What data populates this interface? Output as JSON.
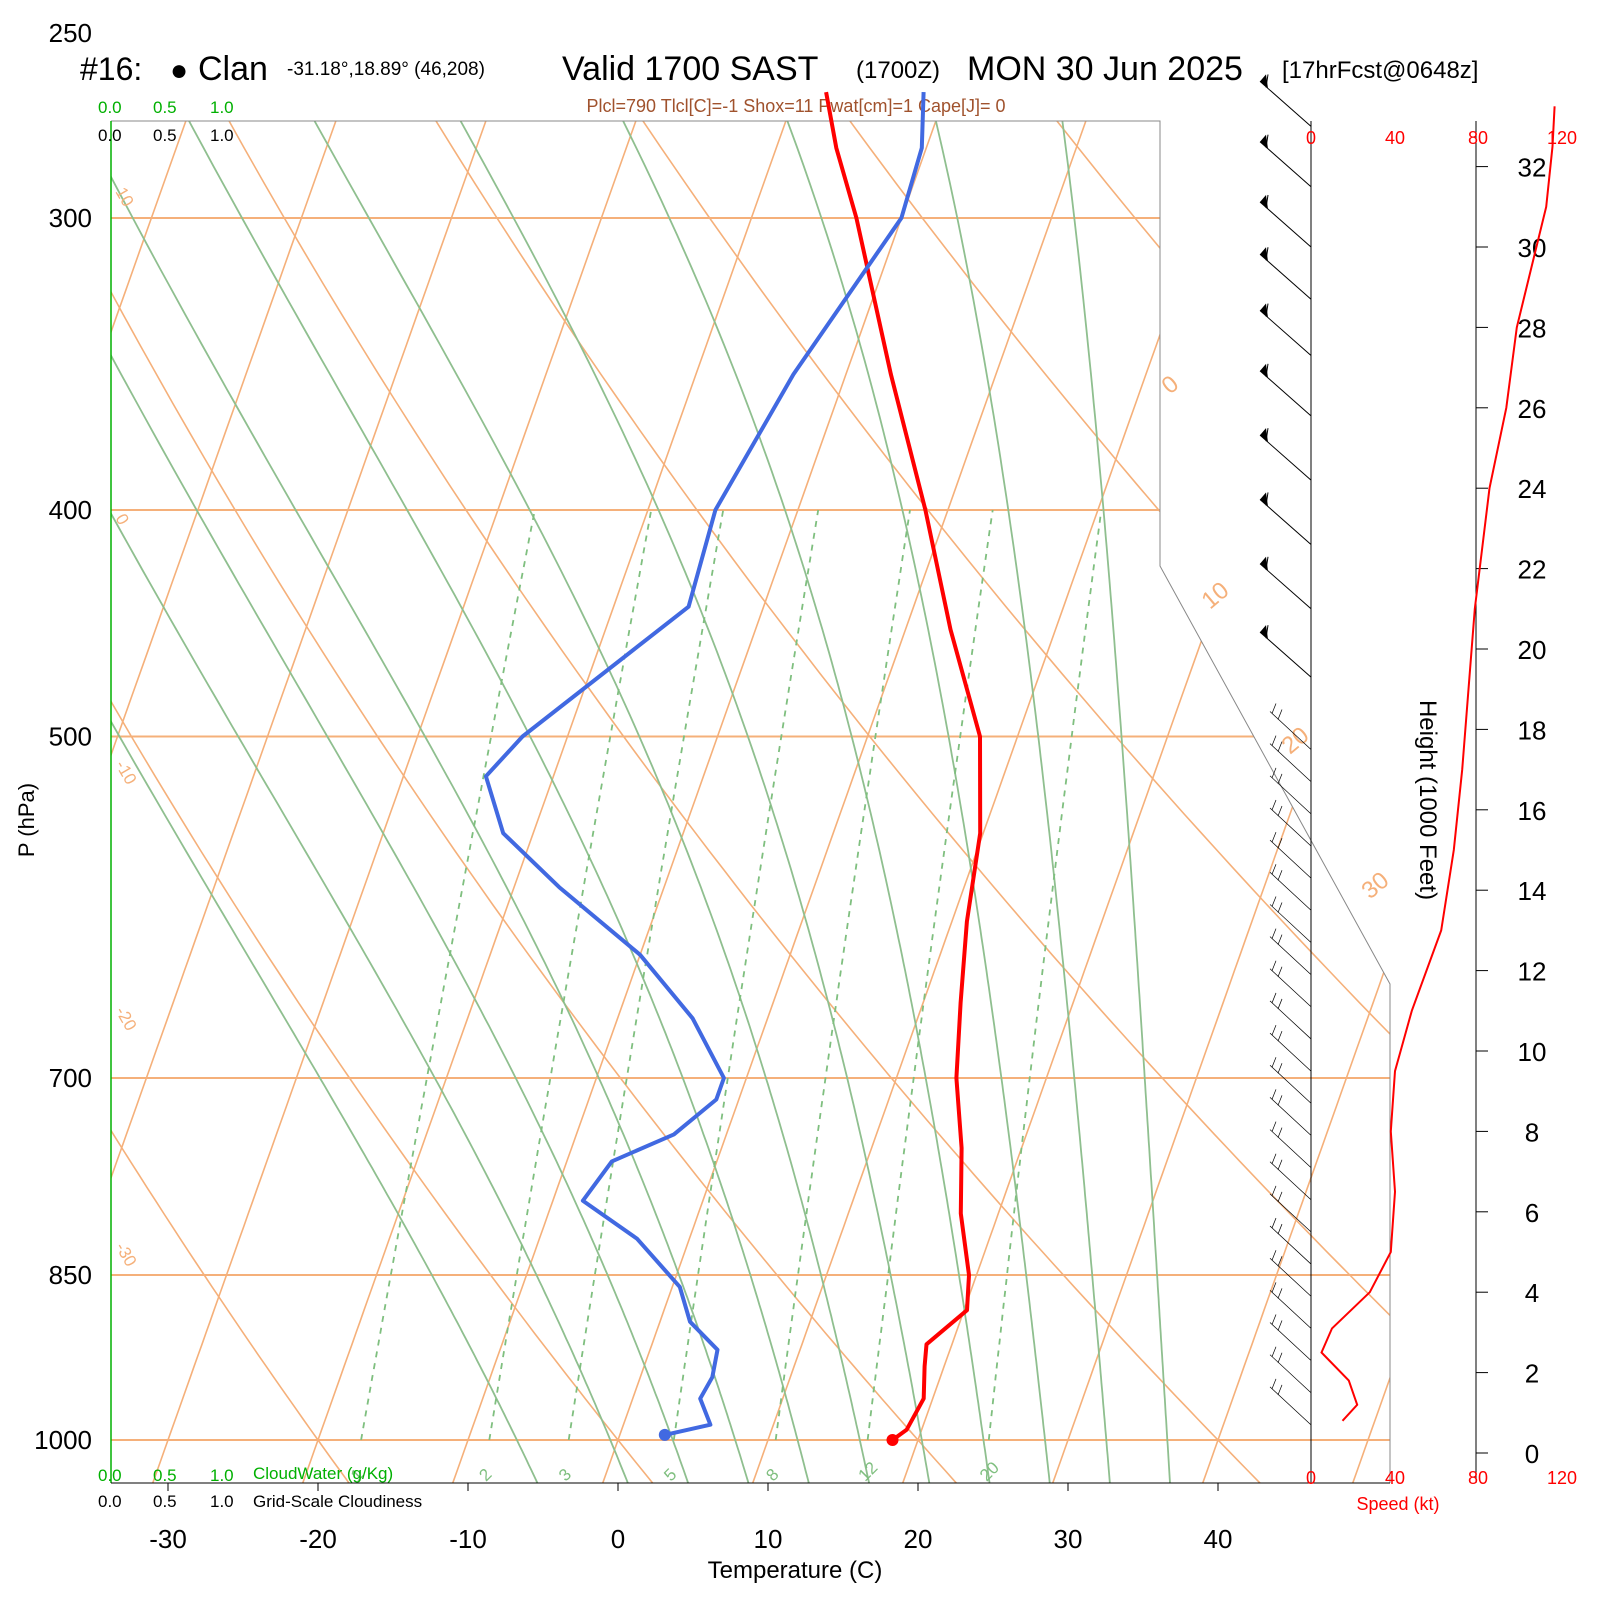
{
  "header": {
    "station_prefix": "#16:",
    "station_marker": "●",
    "station_name": "Clan",
    "coords": "-31.18°,18.89° (46,208)",
    "valid_label": "Valid 1700 SAST",
    "zulu": "(1700Z)",
    "date": "MON 30 Jun 2025",
    "forecast": "[17hrFcst@0648z]",
    "indices": "Plcl=790 Tlcl[C]=-1 Shox=11 Pwat[cm]=1 Cape[J]= 0"
  },
  "colors": {
    "temperature": "#ff0000",
    "dewpoint": "#4169e1",
    "isotherm": "#f5b07a",
    "dry_adiabat": "#f5b07a",
    "moist_adiabat": "#8fbf8f",
    "mixing_ratio": "#7fbf7f",
    "isotherm_label": "#f5b07a",
    "cloud_scale": "#00b000",
    "wind_speed": "#ff0000"
  },
  "chart_data": {
    "type": "skew-t",
    "xlabel": "Temperature (C)",
    "ylabel": "P (hPa)",
    "right_label": "Height (1000 Feet)",
    "pressure_ticks": [
      250,
      300,
      400,
      500,
      700,
      850,
      1000
    ],
    "temperature_ticks": [
      -30,
      -20,
      -10,
      0,
      10,
      20,
      30,
      40
    ],
    "height_ticks": [
      0,
      2,
      4,
      6,
      8,
      10,
      12,
      14,
      16,
      18,
      20,
      22,
      24,
      26,
      28,
      30,
      32
    ],
    "isotherm_labels": [
      "10",
      "0",
      "-10",
      "-20",
      "-30"
    ],
    "isotherm_right_labels": [
      "0",
      "10",
      "20",
      "30"
    ],
    "mixing_ratio_labels": [
      "1",
      "2",
      "3",
      "5",
      "8",
      "12",
      "20"
    ],
    "temperature_profile": [
      {
        "p": 1000,
        "t": 18.3
      },
      {
        "p": 990,
        "t": 19.0
      },
      {
        "p": 960,
        "t": 19.4
      },
      {
        "p": 930,
        "t": 18.7
      },
      {
        "p": 910,
        "t": 18.3
      },
      {
        "p": 880,
        "t": 20.2
      },
      {
        "p": 850,
        "t": 19.5
      },
      {
        "p": 800,
        "t": 17.5
      },
      {
        "p": 750,
        "t": 16.0
      },
      {
        "p": 700,
        "t": 14.0
      },
      {
        "p": 650,
        "t": 12.5
      },
      {
        "p": 600,
        "t": 11.0
      },
      {
        "p": 550,
        "t": 9.8
      },
      {
        "p": 500,
        "t": 7.5
      },
      {
        "p": 450,
        "t": 3.0
      },
      {
        "p": 400,
        "t": -1.5
      },
      {
        "p": 350,
        "t": -7.0
      },
      {
        "p": 300,
        "t": -13.0
      },
      {
        "p": 280,
        "t": -16.0
      },
      {
        "p": 265,
        "t": -18.0
      }
    ],
    "dewpoint_profile": [
      {
        "p": 995,
        "t": 3.0
      },
      {
        "p": 985,
        "t": 5.8
      },
      {
        "p": 960,
        "t": 4.5
      },
      {
        "p": 940,
        "t": 4.8
      },
      {
        "p": 915,
        "t": 4.5
      },
      {
        "p": 890,
        "t": 2.0
      },
      {
        "p": 860,
        "t": 0.5
      },
      {
        "p": 820,
        "t": -3.5
      },
      {
        "p": 790,
        "t": -8.0
      },
      {
        "p": 760,
        "t": -7.0
      },
      {
        "p": 740,
        "t": -3.5
      },
      {
        "p": 715,
        "t": -1.5
      },
      {
        "p": 700,
        "t": -1.5
      },
      {
        "p": 660,
        "t": -5.0
      },
      {
        "p": 620,
        "t": -10.0
      },
      {
        "p": 580,
        "t": -17.0
      },
      {
        "p": 550,
        "t": -22.0
      },
      {
        "p": 520,
        "t": -24.5
      },
      {
        "p": 500,
        "t": -23.0
      },
      {
        "p": 440,
        "t": -15.0
      },
      {
        "p": 400,
        "t": -15.5
      },
      {
        "p": 350,
        "t": -13.5
      },
      {
        "p": 300,
        "t": -10.0
      },
      {
        "p": 280,
        "t": -10.3
      },
      {
        "p": 265,
        "t": -11.5
      }
    ],
    "wind_speed_axis": {
      "label": "Speed (kt)",
      "ticks": [
        0,
        40,
        80,
        120
      ]
    },
    "wind_speed_profile": [
      {
        "h": 0.8,
        "kt": 15
      },
      {
        "h": 1.2,
        "kt": 22
      },
      {
        "h": 1.8,
        "kt": 18
      },
      {
        "h": 2.5,
        "kt": 5
      },
      {
        "h": 3.1,
        "kt": 10
      },
      {
        "h": 4.0,
        "kt": 28
      },
      {
        "h": 5.0,
        "kt": 38
      },
      {
        "h": 6.5,
        "kt": 40
      },
      {
        "h": 8.0,
        "kt": 38
      },
      {
        "h": 9.5,
        "kt": 40
      },
      {
        "h": 11.0,
        "kt": 48
      },
      {
        "h": 13.0,
        "kt": 62
      },
      {
        "h": 15.0,
        "kt": 68
      },
      {
        "h": 17.0,
        "kt": 72
      },
      {
        "h": 19.0,
        "kt": 75
      },
      {
        "h": 21.0,
        "kt": 78
      },
      {
        "h": 24.0,
        "kt": 85
      },
      {
        "h": 26.0,
        "kt": 93
      },
      {
        "h": 28.0,
        "kt": 98
      },
      {
        "h": 31.0,
        "kt": 112
      },
      {
        "h": 32.5,
        "kt": 115
      },
      {
        "h": 33.5,
        "kt": 116
      }
    ],
    "wind_barb_heights": [
      33,
      31.5,
      30,
      28.7,
      27.3,
      25.8,
      24.2,
      22.6,
      21,
      19.3,
      17.5,
      16.7,
      15.9,
      15.1,
      14.3,
      13.5,
      12.7,
      11.9,
      11.1,
      10.3,
      9.5,
      8.7,
      7.9,
      7.1,
      6.3,
      5.5,
      4.7,
      3.9,
      3.1,
      2.3,
      1.5,
      0.7
    ]
  },
  "cloud": {
    "cloudwater_ticks": [
      "0.0",
      "0.5",
      "1.0"
    ],
    "cloudwater_label": "CloudWater (g/Kg)",
    "cloudiness_ticks": [
      "0.0",
      "0.5",
      "1.0"
    ],
    "cloudiness_label": "Grid-Scale Cloudiness"
  }
}
